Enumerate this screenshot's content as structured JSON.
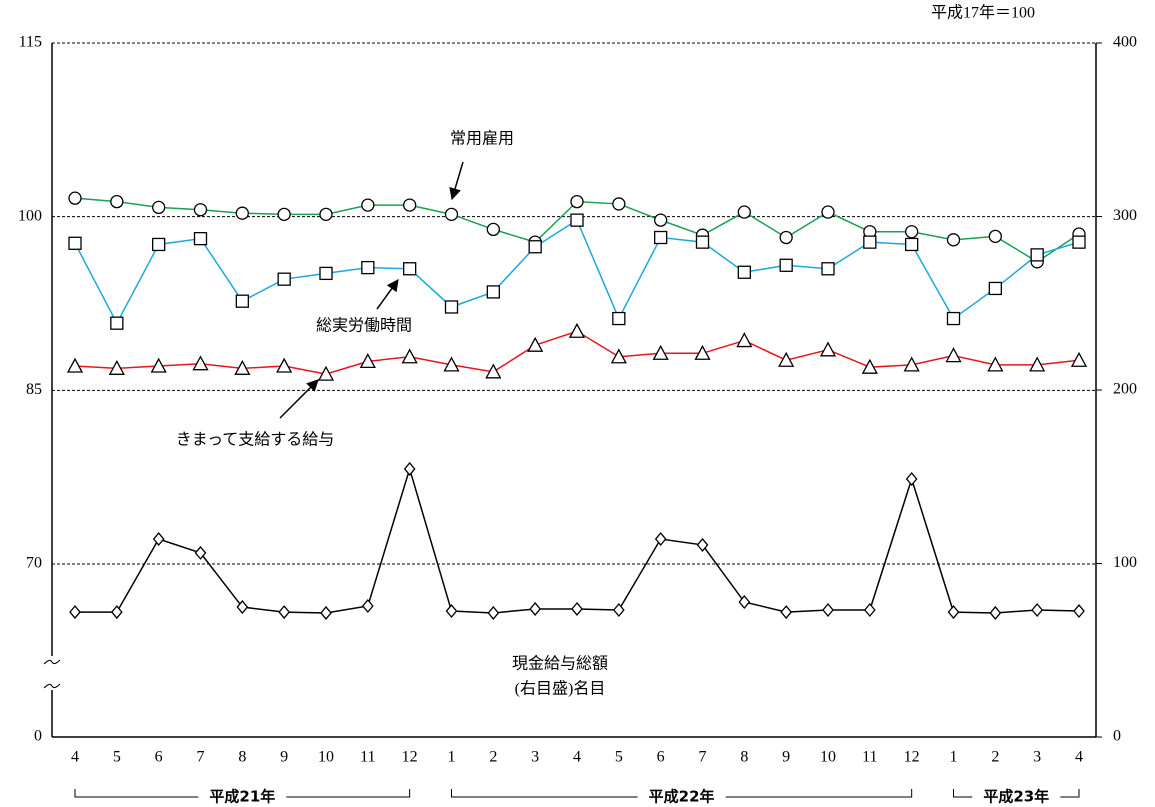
{
  "chart_data": {
    "type": "line",
    "note": "平成17年＝100",
    "annotations": [
      "常用雇用",
      "総実労働時間",
      "きまって支給する給与",
      "現金給与総額",
      "(右目盛)名目"
    ],
    "categories": [
      "4",
      "5",
      "6",
      "7",
      "8",
      "9",
      "10",
      "11",
      "12",
      "1",
      "2",
      "3",
      "4",
      "5",
      "6",
      "7",
      "8",
      "9",
      "10",
      "11",
      "12",
      "1",
      "2",
      "3",
      "4"
    ],
    "groups": [
      {
        "label": "平成21年",
        "start": 0,
        "end": 8
      },
      {
        "label": "平成22年",
        "start": 9,
        "end": 20
      },
      {
        "label": "平成23年",
        "start": 21,
        "end": 24
      }
    ],
    "series": [
      {
        "name": "常用雇用",
        "color": "#1aa050",
        "marker": "circle",
        "values": [
          101.6,
          101.3,
          100.8,
          100.6,
          100.3,
          100.2,
          100.2,
          101.0,
          101.0,
          100.2,
          98.9,
          97.8,
          101.3,
          101.1,
          99.7,
          98.4,
          100.4,
          98.2,
          100.4,
          98.7,
          98.7,
          98.0,
          98.3,
          96.1,
          98.5
        ]
      },
      {
        "name": "総実労働時間",
        "color": "#1aa8e0",
        "marker": "square",
        "values": [
          97.7,
          90.8,
          97.6,
          98.1,
          92.7,
          94.6,
          95.1,
          95.6,
          95.5,
          92.2,
          93.5,
          97.4,
          99.7,
          91.2,
          98.2,
          97.8,
          95.2,
          95.8,
          95.5,
          97.8,
          97.6,
          91.2,
          93.8,
          96.7,
          97.8
        ]
      },
      {
        "name": "きまって支給する給与",
        "color": "#e8141e",
        "marker": "triangle",
        "values": [
          87.1,
          86.9,
          87.1,
          87.3,
          86.9,
          87.1,
          86.4,
          87.5,
          87.9,
          87.2,
          86.6,
          88.9,
          90.1,
          87.9,
          88.2,
          88.2,
          89.3,
          87.6,
          88.5,
          87.0,
          87.2,
          88.0,
          87.2,
          87.2,
          87.6
        ]
      },
      {
        "name": "現金給与総額",
        "color": "#000000",
        "marker": "diamond",
        "axis": "y2",
        "values": [
          72.0,
          72.0,
          114.1,
          106.1,
          74.9,
          72.0,
          71.5,
          75.5,
          154.5,
          72.6,
          71.5,
          73.8,
          73.8,
          73.2,
          114.1,
          110.7,
          77.8,
          72.0,
          73.2,
          73.2,
          148.7,
          72.0,
          71.5,
          73.2,
          72.6
        ]
      }
    ],
    "ylim": [
      0,
      115
    ],
    "yticks": [
      0,
      70,
      85,
      100,
      115
    ],
    "axis_break_at": 70,
    "y2lim": [
      0,
      400
    ],
    "y2ticks": [
      0,
      100,
      200,
      300,
      400
    ],
    "grid": true
  }
}
